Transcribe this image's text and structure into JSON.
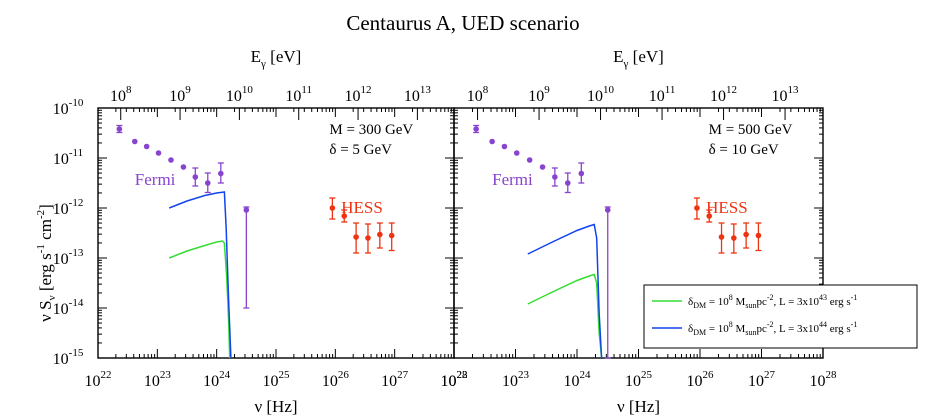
{
  "chart_data": {
    "type": "scatter",
    "title": "Centaurus A, UED scenario",
    "xlabel_bottom": "ν [Hz]",
    "xlabel_top": "E",
    "xlabel_top_sub": "γ",
    "xlabel_top_unit": "[eV]",
    "ylabel": "ν S",
    "ylabel_sub": "ν",
    "ylabel_unit_1": "[erg s",
    "ylabel_unit_2": "cm",
    "ylabel_unit_3": "]",
    "ylabel_exp_1": "-1",
    "ylabel_exp_2": "-2",
    "x_log_range_hz": [
      22,
      28
    ],
    "y_log_range": [
      -15,
      -10
    ],
    "ev_per_hz_log_offset": -14.383,
    "x_tick_labels": [
      "10",
      "10",
      "10",
      "10",
      "10",
      "10",
      "10"
    ],
    "x_tick_exponents": [
      "22",
      "23",
      "24",
      "25",
      "26",
      "27",
      "28"
    ],
    "top_tick_labels": [
      "10",
      "10",
      "10",
      "10",
      "10",
      "10"
    ],
    "top_tick_exponents": [
      "8",
      "9",
      "10",
      "11",
      "12",
      "13"
    ],
    "y_tick_labels": [
      "10",
      "10",
      "10",
      "10",
      "10",
      "10"
    ],
    "y_tick_exponents": [
      "-15",
      "-14",
      "-13",
      "-12",
      "-11",
      "-10"
    ],
    "panels": [
      {
        "name": "left",
        "mass_label": "M = 300 GeV",
        "delta_label": "δ = 5 GeV",
        "fermi_label": "Fermi",
        "hess_label": "HESS",
        "fermi_points": [
          {
            "x": 22.36,
            "y": -10.42,
            "lo": -10.49,
            "hi": -10.35
          },
          {
            "x": 22.62,
            "y": -10.67
          },
          {
            "x": 22.82,
            "y": -10.77
          },
          {
            "x": 23.02,
            "y": -10.9
          },
          {
            "x": 23.23,
            "y": -11.04
          },
          {
            "x": 23.44,
            "y": -11.18
          },
          {
            "x": 23.64,
            "y": -11.38,
            "lo": -11.56,
            "hi": -11.2
          },
          {
            "x": 23.85,
            "y": -11.5,
            "lo": -11.69,
            "hi": -11.3
          },
          {
            "x": 24.07,
            "y": -11.31,
            "lo": -11.5,
            "hi": -11.1
          },
          {
            "x": 24.5,
            "y": -12.04,
            "lo": -14.0,
            "hi": -11.98
          }
        ],
        "hess_points": [
          {
            "x": 25.95,
            "y": -12.0,
            "lo": -12.22,
            "hi": -11.8
          },
          {
            "x": 26.15,
            "y": -12.16,
            "lo": -12.28,
            "hi": -12.04
          },
          {
            "x": 26.35,
            "y": -12.58,
            "lo": -12.9,
            "hi": -12.3
          },
          {
            "x": 26.55,
            "y": -12.6,
            "lo": -12.9,
            "hi": -12.32
          },
          {
            "x": 26.75,
            "y": -12.53,
            "lo": -12.8,
            "hi": -12.3
          },
          {
            "x": 26.95,
            "y": -12.55,
            "lo": -12.85,
            "hi": -12.3
          }
        ],
        "series": [
          {
            "name": "green",
            "color": "#33dd33",
            "points": [
              [
                23.2,
                -13.0
              ],
              [
                23.5,
                -12.86
              ],
              [
                23.8,
                -12.75
              ],
              [
                24.0,
                -12.68
              ],
              [
                24.1,
                -12.66
              ],
              [
                24.13,
                -12.7
              ],
              [
                24.17,
                -13.4
              ],
              [
                24.2,
                -14.2
              ],
              [
                24.22,
                -15.0
              ]
            ]
          },
          {
            "name": "blue",
            "color": "#1144ee",
            "points": [
              [
                23.2,
                -12.0
              ],
              [
                23.5,
                -11.86
              ],
              [
                23.8,
                -11.75
              ],
              [
                24.0,
                -11.7
              ],
              [
                24.13,
                -11.68
              ],
              [
                24.16,
                -12.4
              ],
              [
                24.2,
                -13.8
              ],
              [
                24.24,
                -15.0
              ]
            ]
          }
        ]
      },
      {
        "name": "right",
        "mass_label": "M = 500 GeV",
        "delta_label": "δ = 10 GeV",
        "fermi_label": "Fermi",
        "hess_label": "HESS",
        "fermi_points": [
          {
            "x": 22.36,
            "y": -10.42,
            "lo": -10.49,
            "hi": -10.35
          },
          {
            "x": 22.62,
            "y": -10.67
          },
          {
            "x": 22.82,
            "y": -10.77
          },
          {
            "x": 23.02,
            "y": -10.9
          },
          {
            "x": 23.23,
            "y": -11.04
          },
          {
            "x": 23.44,
            "y": -11.18
          },
          {
            "x": 23.64,
            "y": -11.38,
            "lo": -11.56,
            "hi": -11.2
          },
          {
            "x": 23.85,
            "y": -11.5,
            "lo": -11.69,
            "hi": -11.3
          },
          {
            "x": 24.07,
            "y": -11.31,
            "lo": -11.5,
            "hi": -11.1
          },
          {
            "x": 24.5,
            "y": -12.04,
            "lo": -15.0,
            "hi": -11.98
          }
        ],
        "hess_points": [
          {
            "x": 25.95,
            "y": -12.0,
            "lo": -12.22,
            "hi": -11.8
          },
          {
            "x": 26.15,
            "y": -12.16,
            "lo": -12.28,
            "hi": -12.04
          },
          {
            "x": 26.35,
            "y": -12.58,
            "lo": -12.9,
            "hi": -12.3
          },
          {
            "x": 26.55,
            "y": -12.6,
            "lo": -12.9,
            "hi": -12.32
          },
          {
            "x": 26.75,
            "y": -12.53,
            "lo": -12.8,
            "hi": -12.3
          },
          {
            "x": 26.95,
            "y": -12.55,
            "lo": -12.85,
            "hi": -12.3
          }
        ],
        "series": [
          {
            "name": "green",
            "color": "#33dd33",
            "points": [
              [
                23.2,
                -13.92
              ],
              [
                23.6,
                -13.68
              ],
              [
                24.0,
                -13.45
              ],
              [
                24.2,
                -13.36
              ],
              [
                24.28,
                -13.33
              ],
              [
                24.32,
                -13.5
              ],
              [
                24.36,
                -14.5
              ],
              [
                24.4,
                -15.0
              ]
            ]
          },
          {
            "name": "blue",
            "color": "#1144ee",
            "points": [
              [
                23.2,
                -12.92
              ],
              [
                23.6,
                -12.68
              ],
              [
                24.0,
                -12.45
              ],
              [
                24.2,
                -12.36
              ],
              [
                24.28,
                -12.33
              ],
              [
                24.32,
                -12.6
              ],
              [
                24.36,
                -14.1
              ],
              [
                24.4,
                -15.0
              ]
            ]
          }
        ]
      }
    ],
    "legend": {
      "position": "bottom-right",
      "entries": [
        {
          "color": "#33dd33",
          "delta_sym": "δ",
          "delta_sub": "DM",
          "eq": " = 10",
          "dens_exp": "8",
          "dens_unit": " M",
          "dens_unit_sub": "sun",
          "dens_pc": "pc",
          "dens_pc_exp": "-2",
          "lum": ", L = 3x10",
          "lum_exp": "43",
          "lum_unit": " erg s",
          "lum_unit_exp": "-1"
        },
        {
          "color": "#1144ee",
          "delta_sym": "δ",
          "delta_sub": "DM",
          "eq": " = 10",
          "dens_exp": "8",
          "dens_unit": " M",
          "dens_unit_sub": "sun",
          "dens_pc": "pc",
          "dens_pc_exp": "-2",
          "lum": ", L = 3x10",
          "lum_exp": "44",
          "lum_unit": " erg s",
          "lum_unit_exp": "-1"
        }
      ]
    },
    "colors": {
      "fermi": "#8844cc",
      "hess": "#ee3311"
    }
  }
}
